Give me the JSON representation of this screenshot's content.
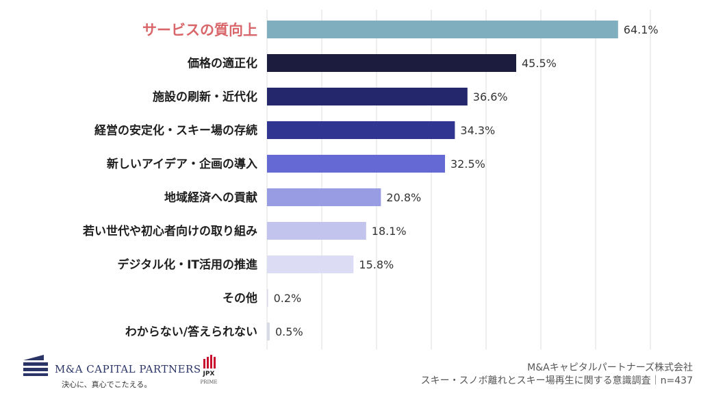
{
  "chart_data": {
    "type": "bar",
    "orientation": "horizontal",
    "categories": [
      "サービスの質向上",
      "価格の適正化",
      "施設の刷新・近代化",
      "経営の安定化・スキー場の存続",
      "新しいアイデア・企画の導入",
      "地域経済への貢献",
      "若い世代や初心者向けの取り組み",
      "デジタル化・IT活用の推進",
      "その他",
      "わからない/答えられない"
    ],
    "values": [
      64.1,
      45.5,
      36.6,
      34.3,
      32.5,
      20.8,
      18.1,
      15.8,
      0.2,
      0.5
    ],
    "value_labels": [
      "64.1%",
      "45.5%",
      "36.6%",
      "34.3%",
      "32.5%",
      "20.8%",
      "18.1%",
      "15.8%",
      "0.2%",
      "0.5%"
    ],
    "bar_colors": [
      "#7fafbf",
      "#1c1c3f",
      "#24276b",
      "#2f3591",
      "#6469d3",
      "#989ce2",
      "#c2c4ee",
      "#dcddf5",
      "#d9dae8",
      "#d9dae8"
    ],
    "highlight_index": 0,
    "highlight_color": "#d9666a",
    "xlim": [
      0,
      70
    ],
    "grid": true,
    "title": "",
    "xlabel": "",
    "ylabel": ""
  },
  "footer": {
    "company_logo": "M&A CAPITAL PARTNERS",
    "company_tagline": "決心に、真心でこたえる。",
    "exchange_badge": "JPX",
    "exchange_sub": "PRIME",
    "source_line1": "M&Aキャピタルパートナーズ株式会社",
    "source_line2": "スキー・スノボ離れとスキー場再生に関する意識調査｜n=437"
  },
  "colors": {
    "brand": "#2a3466",
    "badge_red": "#c8102e"
  }
}
